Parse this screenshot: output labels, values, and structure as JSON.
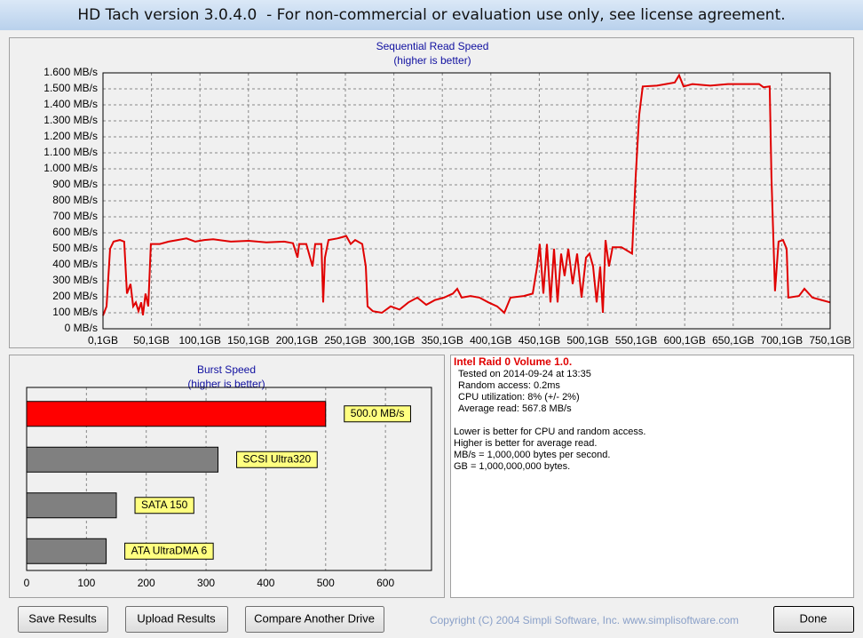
{
  "window": {
    "title": "HD Tach version 3.0.4.0  - For non-commercial or evaluation use only, see license agreement."
  },
  "chart_data": [
    {
      "type": "line",
      "title": "Sequential Read Speed",
      "subtitle": "(higher is better)",
      "color": "#e00000",
      "grid": true,
      "xlim": [
        0.1,
        750.1
      ],
      "xticks": [
        {
          "value": 0.1,
          "label": "0,1GB"
        },
        {
          "value": 50.1,
          "label": "50,1GB"
        },
        {
          "value": 100.1,
          "label": "100,1GB"
        },
        {
          "value": 150.1,
          "label": "150,1GB"
        },
        {
          "value": 200.1,
          "label": "200,1GB"
        },
        {
          "value": 250.1,
          "label": "250,1GB"
        },
        {
          "value": 300.1,
          "label": "300,1GB"
        },
        {
          "value": 350.1,
          "label": "350,1GB"
        },
        {
          "value": 400.1,
          "label": "400,1GB"
        },
        {
          "value": 450.1,
          "label": "450,1GB"
        },
        {
          "value": 500.1,
          "label": "500,1GB"
        },
        {
          "value": 550.1,
          "label": "550,1GB"
        },
        {
          "value": 600.1,
          "label": "600,1GB"
        },
        {
          "value": 650.1,
          "label": "650,1GB"
        },
        {
          "value": 700.1,
          "label": "700,1GB"
        },
        {
          "value": 750.1,
          "label": "750,1GB"
        }
      ],
      "ylim": [
        0,
        1600
      ],
      "yticks": [
        {
          "value": 0,
          "label": "0 MB/s"
        },
        {
          "value": 100,
          "label": "100 MB/s"
        },
        {
          "value": 200,
          "label": "200 MB/s"
        },
        {
          "value": 300,
          "label": "300 MB/s"
        },
        {
          "value": 400,
          "label": "400 MB/s"
        },
        {
          "value": 500,
          "label": "500 MB/s"
        },
        {
          "value": 600,
          "label": "600 MB/s"
        },
        {
          "value": 700,
          "label": "700 MB/s"
        },
        {
          "value": 800,
          "label": "800 MB/s"
        },
        {
          "value": 900,
          "label": "900 MB/s"
        },
        {
          "value": 1000,
          "label": "1.000 MB/s"
        },
        {
          "value": 1100,
          "label": "1.100 MB/s"
        },
        {
          "value": 1200,
          "label": "1.200 MB/s"
        },
        {
          "value": 1300,
          "label": "1.300 MB/s"
        },
        {
          "value": 1400,
          "label": "1.400 MB/s"
        },
        {
          "value": 1500,
          "label": "1.500 MB/s"
        },
        {
          "value": 1600,
          "label": "1.600 MB/s"
        }
      ],
      "x": [
        0.1,
        3.8,
        7.4,
        11,
        17.5,
        22,
        24.8,
        28.5,
        31.2,
        34,
        36.7,
        39.5,
        41.3,
        44,
        46.8,
        49.5,
        58.7,
        67.9,
        77,
        86.2,
        95.3,
        104.5,
        113.7,
        132,
        150.3,
        168.6,
        187,
        196.1,
        200.7,
        202.5,
        209.8,
        216.2,
        219,
        225.4,
        227.2,
        229,
        232.7,
        241.9,
        251,
        255.6,
        260.2,
        267.5,
        271.2,
        273,
        278.5,
        287.7,
        296.8,
        306,
        315.1,
        324.3,
        333.5,
        342.6,
        351.8,
        361,
        365.5,
        370.1,
        379.2,
        388.4,
        397.6,
        406.7,
        414,
        420.4,
        434.2,
        443.3,
        447.9,
        450.6,
        454.3,
        458,
        461.6,
        465.3,
        469,
        472.6,
        476.2,
        480,
        484.5,
        489.1,
        493.7,
        498.3,
        501.9,
        505.6,
        509.3,
        512.9,
        515.7,
        518.4,
        522,
        525.7,
        534.8,
        545.8,
        549.5,
        553.1,
        556.8,
        571.4,
        580.6,
        589.8,
        594.3,
        598.9,
        608,
        626.4,
        644.7,
        663,
        676.8,
        681.3,
        687.7,
        689.6,
        693.2,
        696.9,
        701.5,
        705.2,
        707,
        718,
        723.5,
        731.8,
        741,
        750.1
      ],
      "values": [
        83,
        140,
        500,
        545,
        555,
        545,
        220,
        280,
        140,
        165,
        110,
        165,
        85,
        220,
        140,
        530,
        530,
        545,
        555,
        565,
        545,
        555,
        560,
        545,
        550,
        540,
        545,
        535,
        445,
        530,
        530,
        390,
        530,
        530,
        165,
        445,
        555,
        565,
        580,
        530,
        555,
        530,
        390,
        140,
        110,
        100,
        140,
        120,
        165,
        195,
        150,
        180,
        195,
        220,
        250,
        195,
        205,
        195,
        165,
        140,
        100,
        195,
        205,
        220,
        390,
        530,
        220,
        530,
        165,
        500,
        165,
        470,
        330,
        500,
        280,
        470,
        195,
        445,
        470,
        390,
        165,
        390,
        100,
        555,
        390,
        510,
        510,
        470,
        945,
        1335,
        1515,
        1520,
        1530,
        1540,
        1585,
        1515,
        1530,
        1520,
        1530,
        1530,
        1530,
        1510,
        1515,
        945,
        235,
        545,
        555,
        500,
        195,
        205,
        250,
        195,
        180,
        165
      ]
    },
    {
      "type": "bar",
      "orientation": "horizontal",
      "title": "Burst Speed",
      "subtitle": "(higher is better)",
      "grid": true,
      "categories": [
        "500.0 MB/s",
        "SCSI Ultra320",
        "SATA 150",
        "ATA UltraDMA 6"
      ],
      "values": [
        500,
        320,
        150,
        133
      ],
      "colors": [
        "#ff0000",
        "#808080",
        "#808080",
        "#808080"
      ],
      "xlim": [
        0,
        677
      ],
      "xticks": [
        0,
        100,
        200,
        300,
        400,
        500,
        600
      ]
    }
  ],
  "info": {
    "title": "Intel Raid 0 Volume 1.0.",
    "lines": [
      "Tested on 2014-09-24 at 13:35",
      "Random access: 0.2ms",
      "CPU utilization: 8% (+/- 2%)",
      "Average read: 567.8 MB/s"
    ],
    "notes": [
      "Lower is better for CPU and random access.",
      "Higher is better for average read.",
      "MB/s = 1,000,000 bytes per second.",
      "GB = 1,000,000,000 bytes."
    ]
  },
  "buttons": [
    "Save Results",
    "Upload Results",
    "Compare Another Drive",
    "Done"
  ],
  "copyright": "Copyright (C) 2004 Simpli Software, Inc. www.simplisoftware.com"
}
